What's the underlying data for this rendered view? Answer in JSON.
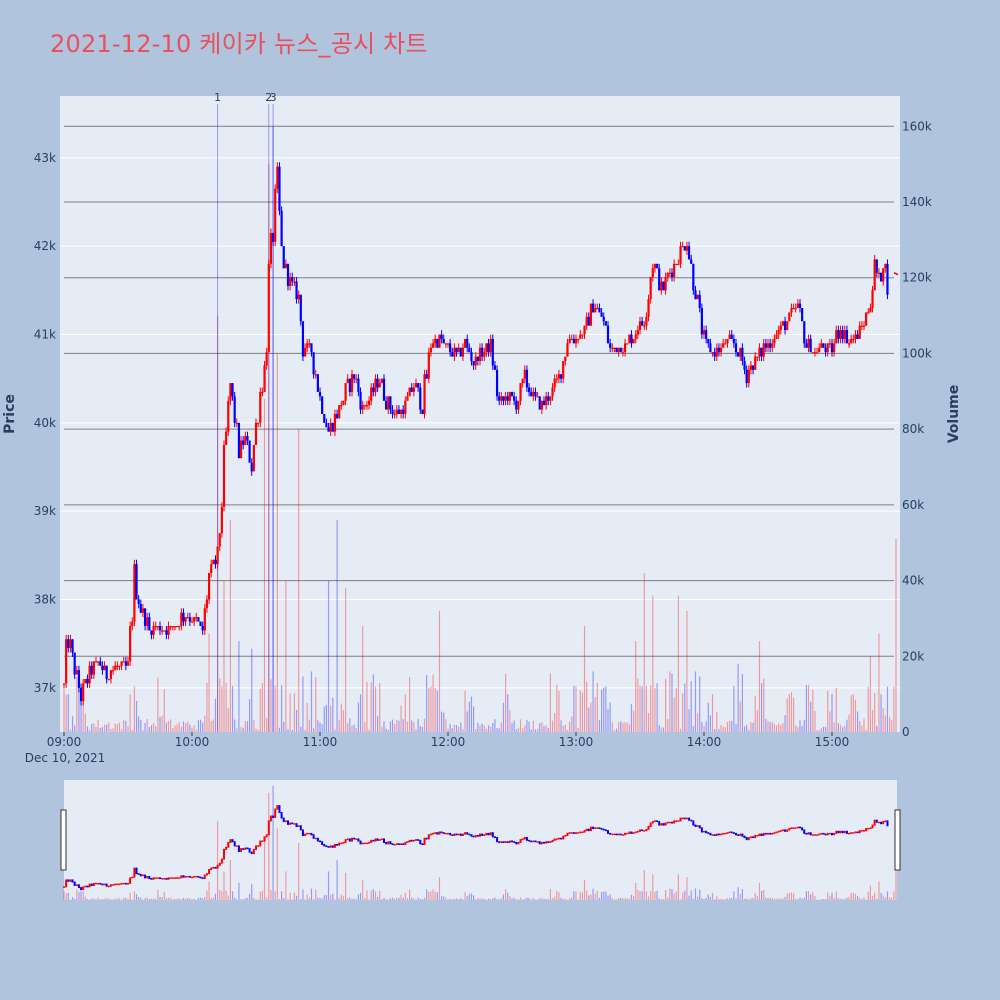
{
  "title": "2021-12-10 케이카 뉴스_공시 차트",
  "colors": {
    "background": "#b0c4de",
    "plot_bg": "#e5ecf6",
    "up": "#ff0000",
    "down": "#0000ff",
    "title": "#e8505b",
    "grid": "#ffffff",
    "volume_grid": "#7f7f7f"
  },
  "chart_data": {
    "type": "candlestick",
    "price_axis": {
      "label": "Price",
      "ylim": [
        36500,
        43700
      ],
      "ticks": [
        37000,
        38000,
        39000,
        40000,
        41000,
        42000,
        43000
      ],
      "tick_labels": [
        "37k",
        "38k",
        "39k",
        "40k",
        "41k",
        "42k",
        "43k"
      ]
    },
    "volume_axis": {
      "label": "Volume",
      "ylim": [
        0,
        168000
      ],
      "ticks": [
        0,
        20000,
        40000,
        60000,
        80000,
        100000,
        120000,
        140000,
        160000
      ],
      "tick_labels": [
        "0",
        "20k",
        "40k",
        "60k",
        "80k",
        "100k",
        "120k",
        "140k",
        "160k"
      ]
    },
    "x_axis": {
      "start": "09:00",
      "end": "15:30",
      "ticks": [
        "09:00",
        "10:00",
        "11:00",
        "12:00",
        "13:00",
        "14:00",
        "15:00"
      ],
      "date_label": "Dec 10, 2021"
    },
    "news_markers": [
      {
        "time": "10:12",
        "label": "1"
      },
      {
        "time": "10:36",
        "label": "2"
      },
      {
        "time": "10:38",
        "label": "3"
      }
    ],
    "price_path": [
      [
        "09:00",
        37050
      ],
      [
        "09:02",
        37600
      ],
      [
        "09:05",
        37200
      ],
      [
        "09:08",
        36900
      ],
      [
        "09:12",
        37150
      ],
      [
        "09:16",
        37300
      ],
      [
        "09:20",
        37150
      ],
      [
        "09:25",
        37250
      ],
      [
        "09:30",
        37250
      ],
      [
        "09:33",
        38200
      ],
      [
        "09:36",
        37900
      ],
      [
        "09:40",
        37650
      ],
      [
        "09:45",
        37700
      ],
      [
        "09:50",
        37650
      ],
      [
        "09:55",
        37800
      ],
      [
        "10:00",
        37800
      ],
      [
        "10:05",
        37650
      ],
      [
        "10:08",
        38250
      ],
      [
        "10:12",
        38500
      ],
      [
        "10:15",
        39500
      ],
      [
        "10:18",
        40400
      ],
      [
        "10:22",
        39700
      ],
      [
        "10:25",
        39800
      ],
      [
        "10:28",
        39500
      ],
      [
        "10:31",
        40200
      ],
      [
        "10:34",
        40600
      ],
      [
        "10:36",
        41600
      ],
      [
        "10:38",
        42200
      ],
      [
        "10:40",
        42700
      ],
      [
        "10:42",
        41900
      ],
      [
        "10:46",
        41600
      ],
      [
        "10:50",
        41400
      ],
      [
        "10:52",
        40900
      ],
      [
        "10:56",
        40800
      ],
      [
        "11:00",
        40300
      ],
      [
        "11:04",
        39900
      ],
      [
        "11:08",
        40100
      ],
      [
        "11:12",
        40350
      ],
      [
        "11:16",
        40550
      ],
      [
        "11:20",
        40150
      ],
      [
        "11:24",
        40300
      ],
      [
        "11:28",
        40500
      ],
      [
        "11:32",
        40200
      ],
      [
        "11:36",
        40100
      ],
      [
        "11:40",
        40200
      ],
      [
        "11:44",
        40450
      ],
      [
        "11:48",
        40200
      ],
      [
        "11:52",
        40900
      ],
      [
        "11:56",
        40950
      ],
      [
        "12:00",
        40850
      ],
      [
        "12:04",
        40750
      ],
      [
        "12:08",
        40900
      ],
      [
        "12:12",
        40700
      ],
      [
        "12:16",
        40800
      ],
      [
        "12:20",
        40900
      ],
      [
        "12:24",
        40200
      ],
      [
        "12:28",
        40300
      ],
      [
        "12:32",
        40200
      ],
      [
        "12:36",
        40500
      ],
      [
        "12:40",
        40300
      ],
      [
        "12:44",
        40200
      ],
      [
        "12:48",
        40350
      ],
      [
        "12:52",
        40500
      ],
      [
        "12:56",
        40950
      ],
      [
        "13:00",
        40950
      ],
      [
        "13:04",
        41050
      ],
      [
        "13:08",
        41350
      ],
      [
        "13:12",
        41200
      ],
      [
        "13:16",
        40850
      ],
      [
        "13:20",
        40850
      ],
      [
        "13:24",
        40900
      ],
      [
        "13:28",
        41050
      ],
      [
        "13:32",
        41150
      ],
      [
        "13:36",
        41850
      ],
      [
        "13:40",
        41500
      ],
      [
        "13:44",
        41700
      ],
      [
        "13:48",
        41900
      ],
      [
        "13:52",
        42050
      ],
      [
        "13:56",
        41500
      ],
      [
        "14:00",
        40900
      ],
      [
        "14:04",
        40800
      ],
      [
        "14:08",
        40850
      ],
      [
        "14:12",
        40950
      ],
      [
        "14:16",
        40800
      ],
      [
        "14:20",
        40550
      ],
      [
        "14:24",
        40700
      ],
      [
        "14:28",
        40850
      ],
      [
        "14:32",
        40950
      ],
      [
        "14:36",
        41050
      ],
      [
        "14:40",
        41200
      ],
      [
        "14:44",
        41300
      ],
      [
        "14:48",
        40900
      ],
      [
        "14:52",
        40800
      ],
      [
        "14:56",
        40850
      ],
      [
        "15:00",
        40850
      ],
      [
        "15:04",
        41100
      ],
      [
        "15:08",
        40900
      ],
      [
        "15:12",
        41000
      ],
      [
        "15:16",
        41200
      ],
      [
        "15:18",
        41400
      ],
      [
        "15:20",
        41750
      ],
      [
        "15:22",
        41600
      ],
      [
        "15:24",
        41850
      ],
      [
        "15:26",
        41600
      ]
    ],
    "volume_spikes": [
      [
        "09:02",
        10000
      ],
      [
        "09:08",
        12000
      ],
      [
        "09:33",
        12000
      ],
      [
        "09:45",
        4000
      ],
      [
        "10:08",
        26000
      ],
      [
        "10:12",
        110000
      ],
      [
        "10:15",
        40000
      ],
      [
        "10:18",
        56000
      ],
      [
        "10:22",
        24000
      ],
      [
        "10:28",
        22000
      ],
      [
        "10:34",
        88000
      ],
      [
        "10:36",
        150000
      ],
      [
        "10:38",
        160000
      ],
      [
        "10:40",
        100000
      ],
      [
        "10:44",
        40000
      ],
      [
        "10:50",
        80000
      ],
      [
        "10:56",
        16000
      ],
      [
        "11:04",
        40000
      ],
      [
        "11:08",
        56000
      ],
      [
        "11:12",
        38000
      ],
      [
        "11:20",
        28000
      ],
      [
        "11:26",
        12000
      ],
      [
        "11:40",
        10000
      ],
      [
        "11:52",
        12000
      ],
      [
        "11:56",
        32000
      ],
      [
        "12:10",
        8000
      ],
      [
        "12:28",
        10000
      ],
      [
        "12:50",
        5000
      ],
      [
        "13:00",
        12000
      ],
      [
        "13:04",
        28000
      ],
      [
        "13:08",
        16000
      ],
      [
        "13:14",
        12000
      ],
      [
        "13:28",
        24000
      ],
      [
        "13:32",
        42000
      ],
      [
        "13:36",
        36000
      ],
      [
        "13:44",
        16000
      ],
      [
        "13:48",
        36000
      ],
      [
        "13:52",
        32000
      ],
      [
        "13:56",
        16000
      ],
      [
        "14:04",
        10000
      ],
      [
        "14:16",
        18000
      ],
      [
        "14:26",
        24000
      ],
      [
        "14:40",
        10000
      ],
      [
        "14:50",
        8000
      ],
      [
        "15:00",
        10000
      ],
      [
        "15:10",
        10000
      ],
      [
        "15:18",
        20000
      ],
      [
        "15:22",
        26000
      ],
      [
        "15:26",
        12000
      ],
      [
        "15:30",
        51000
      ]
    ],
    "last_price": 41700
  }
}
